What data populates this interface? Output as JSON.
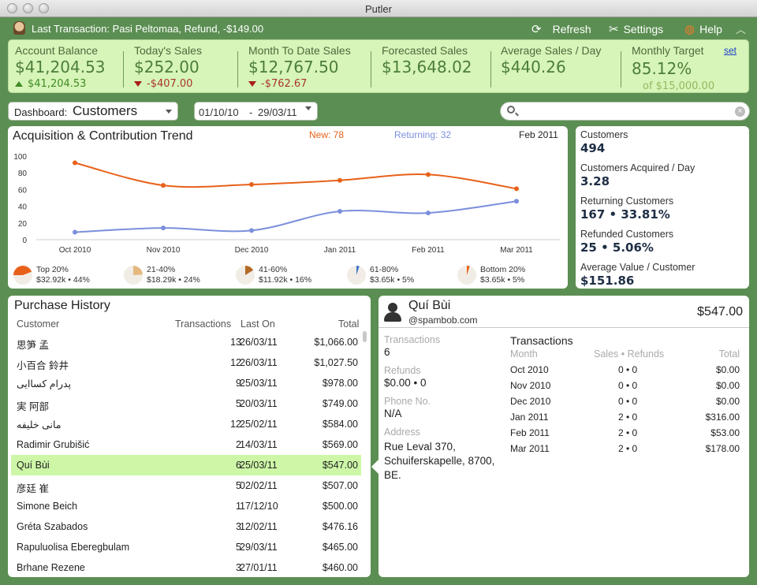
{
  "window": {
    "title": "Putler"
  },
  "topbar": {
    "last_transaction": "Last Transaction: Pasi Peltomaa, Refund, -$149.00",
    "refresh_label": "Refresh",
    "settings_label": "Settings",
    "help_label": "Help"
  },
  "stats": {
    "account_balance": {
      "label": "Account Balance",
      "value": "$41,204.53",
      "change": "$41,204.53"
    },
    "todays_sales": {
      "label": "Today's Sales",
      "value": "$252.00",
      "change": "-$407.00"
    },
    "mtd_sales": {
      "label": "Month To Date Sales",
      "value": "$12,767.50",
      "change": "-$762.67"
    },
    "forecasted_sales": {
      "label": "Forecasted Sales",
      "value": "$13,648.02"
    },
    "avg_sales_day": {
      "label": "Average Sales / Day",
      "value": "$440.26"
    },
    "monthly_target": {
      "label": "Monthly Target",
      "value": "85.12%",
      "of": "of $15,000.00",
      "set_label": "set"
    }
  },
  "filters": {
    "dashboard_label": "Dashboard:",
    "dashboard_value": "Customers",
    "date_from": "01/10/10",
    "date_sep": "-",
    "date_to": "29/03/11",
    "search_value": ""
  },
  "chart_data": {
    "type": "line",
    "title": "Acquisition & Contribution Trend",
    "period": "Feb 2011",
    "categories": [
      "Oct 2010",
      "Nov 2010",
      "Dec 2010",
      "Jan 2011",
      "Feb 2011",
      "Mar 2011"
    ],
    "y_ticks": [
      "0",
      "20",
      "40",
      "60",
      "80",
      "100"
    ],
    "ylim": [
      0,
      100
    ],
    "grid": false,
    "legend_new": "New: 78",
    "legend_returning": "Returning: 32",
    "series": [
      {
        "name": "New",
        "color": "#e8611a",
        "values": [
          92,
          65,
          66,
          71,
          78,
          61
        ]
      },
      {
        "name": "Returning",
        "color": "#7b8fdc",
        "values": [
          9,
          14,
          11,
          34,
          32,
          46
        ]
      }
    ]
  },
  "segments": [
    {
      "label": "Top 20%",
      "value": "$32.92k • 44%",
      "fraction": 0.44,
      "color": "#e8611a"
    },
    {
      "label": "21-40%",
      "value": "$18.29k • 24%",
      "fraction": 0.24,
      "color": "#e4b97f"
    },
    {
      "label": "41-60%",
      "value": "$11.92k • 16%",
      "fraction": 0.16,
      "color": "#b36a27"
    },
    {
      "label": "61-80%",
      "value": "$3.65k • 5%",
      "fraction": 0.05,
      "color": "#3d78c6"
    },
    {
      "label": "Bottom 20%",
      "value": "$3.65k • 5%",
      "fraction": 0.05,
      "color": "#e8611a"
    }
  ],
  "customers_summary": [
    {
      "label": "Customers",
      "value": "494"
    },
    {
      "label": "Customers Acquired / Day",
      "value": "3.28"
    },
    {
      "label": "Returning Customers",
      "value": "167 • 33.81%"
    },
    {
      "label": "Refunded Customers",
      "value": "25 • 5.06%"
    },
    {
      "label": "Average Value / Customer",
      "value": "$151.86"
    }
  ],
  "purchase_history": {
    "title": "Purchase History",
    "columns": {
      "customer": "Customer",
      "transactions": "Transactions",
      "last_on": "Last On",
      "total": "Total"
    },
    "rows": [
      {
        "customer": "思笋 孟",
        "transactions": "13",
        "last_on": "26/03/11",
        "total": "$1,066.00"
      },
      {
        "customer": "小百合 鈴井",
        "transactions": "12",
        "last_on": "26/03/11",
        "total": "$1,027.50"
      },
      {
        "customer": "پدرام کساایی",
        "transactions": "9",
        "last_on": "25/03/11",
        "total": "$978.00"
      },
      {
        "customer": "実 阿部",
        "transactions": "5",
        "last_on": "20/03/11",
        "total": "$749.00"
      },
      {
        "customer": "مانی خلیفه",
        "transactions": "12",
        "last_on": "25/02/11",
        "total": "$584.00"
      },
      {
        "customer": "Radimir Grubišić",
        "transactions": "2",
        "last_on": "14/03/11",
        "total": "$569.00"
      },
      {
        "customer": "Quí Bùi",
        "transactions": "6",
        "last_on": "25/03/11",
        "total": "$547.00"
      },
      {
        "customer": "彦廷 崔",
        "transactions": "5",
        "last_on": "02/02/11",
        "total": "$507.00"
      },
      {
        "customer": "Simone Beich",
        "transactions": "1",
        "last_on": "17/12/10",
        "total": "$500.00"
      },
      {
        "customer": "Gréta Szabados",
        "transactions": "3",
        "last_on": "12/02/11",
        "total": "$476.16"
      },
      {
        "customer": "Rapuluolisa Eberegbulam",
        "transactions": "5",
        "last_on": "29/03/11",
        "total": "$465.00"
      },
      {
        "customer": "Brhane Rezene",
        "transactions": "3",
        "last_on": "27/01/11",
        "total": "$460.00"
      }
    ]
  },
  "customer_detail": {
    "name": "Quí Bùi",
    "email": "@spambob.com",
    "total": "$547.00",
    "transactions_label": "Transactions",
    "transactions_value": "6",
    "refunds_label": "Refunds",
    "refunds_value": "$0.00 • 0",
    "phone_label": "Phone No.",
    "phone_value": "N/A",
    "address_label": "Address",
    "address_value": "Rue Leval 370, Schuiferskapelle, 8700, BE.",
    "tx_title": "Transactions",
    "tx_columns": {
      "month": "Month",
      "sales_refunds": "Sales • Refunds",
      "total": "Total"
    },
    "tx_rows": [
      {
        "month": "Oct 2010",
        "sales_refunds": "0 • 0",
        "total": "$0.00"
      },
      {
        "month": "Nov 2010",
        "sales_refunds": "0 • 0",
        "total": "$0.00"
      },
      {
        "month": "Dec 2010",
        "sales_refunds": "0 • 0",
        "total": "$0.00"
      },
      {
        "month": "Jan 2011",
        "sales_refunds": "2 • 0",
        "total": "$316.00"
      },
      {
        "month": "Feb 2011",
        "sales_refunds": "2 • 0",
        "total": "$53.00"
      },
      {
        "month": "Mar 2011",
        "sales_refunds": "2 • 0",
        "total": "$178.00"
      }
    ]
  }
}
